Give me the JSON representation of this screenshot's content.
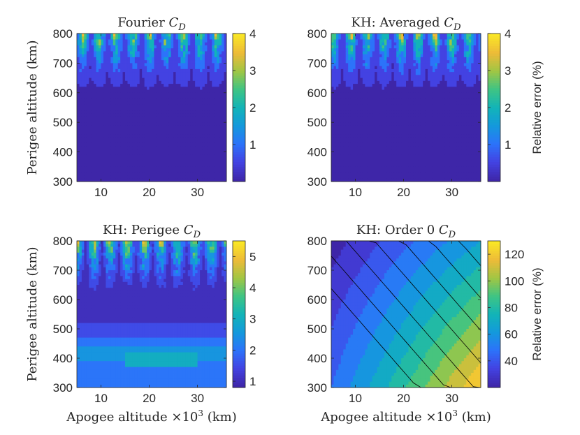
{
  "figure": {
    "colormap": [
      "#3e26a8",
      "#4342e2",
      "#2c73fa",
      "#1499dc",
      "#12b4b8",
      "#3ec484",
      "#a0c644",
      "#edbb38",
      "#fae626"
    ]
  },
  "chart_data": [
    {
      "id": "fourier",
      "type": "contour",
      "title": "Fourier C_D",
      "title_text": "Fourier ",
      "title_sym": "C",
      "title_sub": "D",
      "xlabel": "",
      "ylabel": "Perigee altitude (km)",
      "x_unit": "Apogee altitude ×10^3 km",
      "xlim": [
        5,
        36
      ],
      "ylim": [
        300,
        800
      ],
      "xticks": [
        10,
        20,
        30
      ],
      "yticks": [
        300,
        400,
        500,
        600,
        700,
        800
      ],
      "clim": [
        0,
        4
      ],
      "colorbar_ticks": [
        1,
        2,
        3,
        4
      ],
      "colorbar_label": "",
      "pattern": "noisy",
      "baseline_error_pct": 0.2,
      "noise_onset_perigee_km": 600,
      "max_error_pct": 4
    },
    {
      "id": "kh-averaged",
      "type": "contour",
      "title": "KH: Averaged C_D",
      "title_text": "KH: Averaged ",
      "title_sym": "C",
      "title_sub": "D",
      "xlabel": "",
      "ylabel": "",
      "x_unit": "Apogee altitude ×10^3 km",
      "xlim": [
        5,
        36
      ],
      "ylim": [
        300,
        800
      ],
      "xticks": [
        10,
        20,
        30
      ],
      "yticks": [
        300,
        400,
        500,
        600,
        700,
        800
      ],
      "clim": [
        0,
        4
      ],
      "colorbar_ticks": [
        1,
        2,
        3,
        4
      ],
      "colorbar_label": "Relative error (%)",
      "pattern": "noisy",
      "baseline_error_pct": 0.2,
      "noise_onset_perigee_km": 600,
      "max_error_pct": 4
    },
    {
      "id": "kh-perigee",
      "type": "contour",
      "title": "KH: Perigee C_D",
      "title_text": "KH: Perigee ",
      "title_sym": "C",
      "title_sub": "D",
      "xlabel": "Apogee altitude ×10^3 (km)",
      "ylabel": "Perigee altitude (km)",
      "x_unit": "Apogee altitude ×10^3 km",
      "xlim": [
        5,
        36
      ],
      "ylim": [
        300,
        800
      ],
      "xticks": [
        10,
        20,
        30
      ],
      "yticks": [
        300,
        400,
        500,
        600,
        700,
        800
      ],
      "clim": [
        0.8,
        5.5
      ],
      "colorbar_ticks": [
        1,
        2,
        3,
        4,
        5
      ],
      "colorbar_label": "",
      "pattern": "perigee",
      "baseline_error_pct": 1.0,
      "noise_onset_perigee_km": 600,
      "max_error_pct": 5.5,
      "bands": [
        {
          "perigee_km": 300,
          "error_pct": 1.8
        },
        {
          "perigee_km": 390,
          "error_pct": 2.6
        },
        {
          "perigee_km": 440,
          "error_pct": 1.9
        },
        {
          "perigee_km": 475,
          "error_pct": 1.4
        },
        {
          "perigee_km": 520,
          "error_pct": 1.0
        }
      ]
    },
    {
      "id": "kh-order0",
      "type": "contour",
      "title": "KH: Order 0 C_D",
      "title_text": "KH: Order 0 ",
      "title_sym": "C",
      "title_sub": "D",
      "xlabel": "Apogee altitude ×10^3 (km)",
      "ylabel": "",
      "x_unit": "Apogee altitude ×10^3 km",
      "xlim": [
        5,
        36
      ],
      "ylim": [
        300,
        800
      ],
      "xticks": [
        10,
        20,
        30
      ],
      "yticks": [
        300,
        400,
        500,
        600,
        700,
        800
      ],
      "clim": [
        20,
        130
      ],
      "colorbar_ticks": [
        40,
        60,
        80,
        100,
        120
      ],
      "colorbar_label": "Relative error (%)",
      "pattern": "smooth",
      "error_at_corners_pct": {
        "low_apogee_high_perigee": 20,
        "high_apogee_high_perigee": 65,
        "low_apogee_low_perigee": 45,
        "high_apogee_low_perigee": 125
      }
    }
  ]
}
